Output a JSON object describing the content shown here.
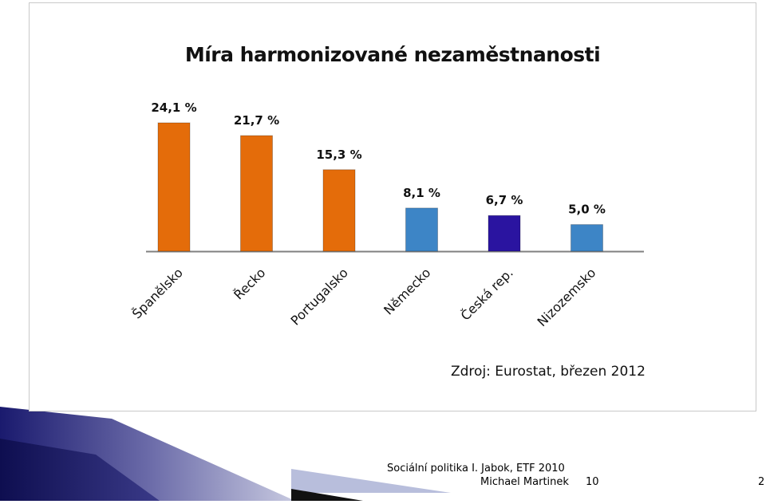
{
  "chart_data": {
    "type": "bar",
    "title": "Míra harmonizované nezaměstnanosti",
    "categories": [
      "Španělsko",
      "Řecko",
      "Portugalsko",
      "Německo",
      "Česká rep.",
      "Nizozemsko"
    ],
    "values": [
      24.1,
      21.7,
      15.3,
      8.1,
      6.7,
      5.0
    ],
    "value_labels": [
      "24,1 %",
      "21,7 %",
      "15,3 %",
      "8,1 %",
      "6,7 %",
      "5,0 %"
    ],
    "bar_colors": [
      "#e46c0a",
      "#e46c0a",
      "#e46c0a",
      "#3d85c6",
      "#2a14a0",
      "#3d85c6"
    ],
    "xlabel": "",
    "ylabel": "",
    "ylim": [
      0,
      24.1
    ],
    "grid": false,
    "legend": "none",
    "source": "Zdroj: Eurostat, březen 2012"
  },
  "footer": {
    "line1": "Sociální politika I. Jabok, ETF 2010",
    "line2": "Michael Martinek",
    "slide_number": "10",
    "page_number": "2"
  },
  "colors": {
    "footer_dark": "#1a1a6e",
    "footer_light": "#b8bedc"
  }
}
